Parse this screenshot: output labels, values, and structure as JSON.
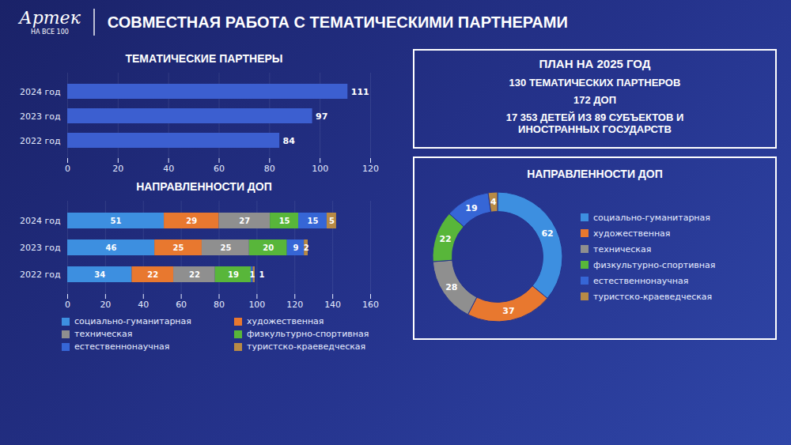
{
  "header": {
    "logo": "Артек",
    "logo_subtitle": "НА ВСЕ 100",
    "title": "СОВМЕСТНАЯ РАБОТА С ТЕМАТИЧЕСКИМИ ПАРТНЕРАМИ"
  },
  "plan": {
    "title": "ПЛАН НА 2025 ГОД",
    "lines": [
      "130 ТЕМАТИЧЕСКИХ ПАРТНЕРОВ",
      "172 ДОП",
      "17 353 ДЕТЕЙ ИЗ 89 СУБЪЕКТОВ И ИНОСТРАННЫХ ГОСУДАРСТВ"
    ]
  },
  "chart_data": [
    {
      "type": "bar",
      "title": "ТЕМАТИЧЕСКИЕ ПАРТНЕРЫ",
      "orientation": "horizontal",
      "categories": [
        "2024 год",
        "2023 год",
        "2022 год"
      ],
      "values": [
        111,
        97,
        84
      ],
      "color": "#3c5fd0",
      "xlim": [
        0,
        120
      ],
      "xticks": [
        0,
        20,
        40,
        60,
        80,
        100,
        120
      ],
      "grid": true,
      "data_labels": true
    },
    {
      "type": "bar",
      "title": "НАПРАВЛЕННОСТИ ДОП",
      "orientation": "horizontal",
      "stacked": true,
      "categories": [
        "2024 год",
        "2023 год",
        "2022 год"
      ],
      "series": [
        {
          "name": "социально-гуманитарная",
          "color": "#3d8fe0",
          "values": [
            51,
            46,
            34
          ]
        },
        {
          "name": "художественная",
          "color": "#e8782f",
          "values": [
            29,
            25,
            22
          ]
        },
        {
          "name": "техническая",
          "color": "#8f8f8f",
          "values": [
            27,
            25,
            22
          ]
        },
        {
          "name": "физкультурно-спортивная",
          "color": "#58b63a",
          "values": [
            15,
            20,
            19
          ]
        },
        {
          "name": "естественнонаучная",
          "color": "#3666d6",
          "values": [
            15,
            9,
            1
          ]
        },
        {
          "name": "туристско-краеведческая",
          "color": "#b88a45",
          "values": [
            5,
            2,
            1
          ]
        }
      ],
      "xlim": [
        0,
        160
      ],
      "xticks": [
        0,
        20,
        40,
        60,
        80,
        100,
        120,
        140,
        160
      ],
      "grid": true,
      "data_labels": true,
      "legend": "bottom"
    },
    {
      "type": "donut",
      "title": "НАПРАВЛЕННОСТИ ДОП",
      "categories": [
        "социально-гуманитарная",
        "художественная",
        "техническая",
        "физкультурно-спортивная",
        "естественнонаучная",
        "туристско-краеведческая"
      ],
      "values": [
        62,
        37,
        28,
        22,
        19,
        4
      ],
      "colors": [
        "#3d8fe0",
        "#e8782f",
        "#8f8f8f",
        "#58b63a",
        "#3666d6",
        "#b88a45"
      ],
      "data_labels": true,
      "legend": "right"
    }
  ]
}
